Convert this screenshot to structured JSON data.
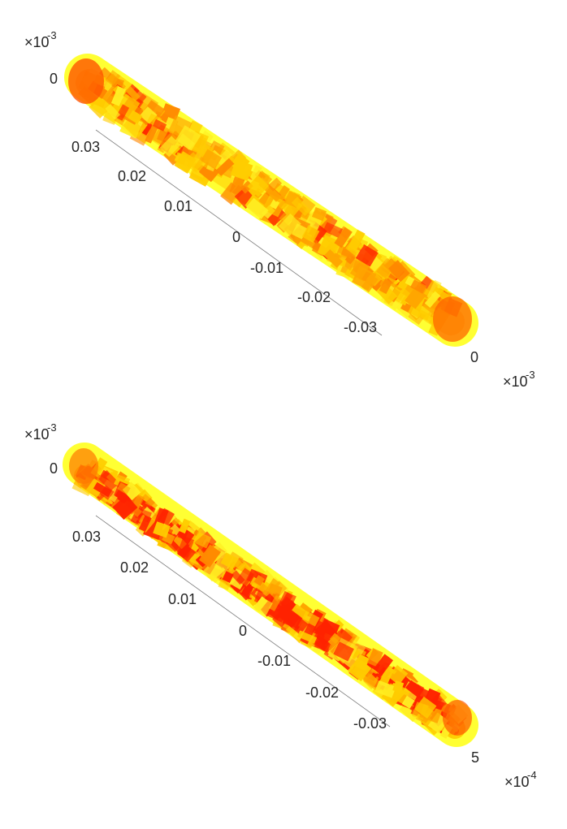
{
  "colors": {
    "yellow": "#ffff33",
    "light_yellow": "#ffee22",
    "gold": "#ffcc00",
    "orange": "#ffa500",
    "dark_orange": "#ff8800",
    "red": "#ff2200",
    "axis": "#262626"
  },
  "chart_data": [
    {
      "type": "surface3d",
      "title": "",
      "colormap": "autumn",
      "y_ticks": [
        "0.03",
        "0.02",
        "0.01",
        "0",
        "-0.01",
        "-0.02",
        "-0.03"
      ],
      "z_tick": "0",
      "z_exponent": "×10",
      "z_exponent_power": "-3",
      "x_tick": "0",
      "x_exponent": "×10",
      "x_exponent_power": "-3",
      "red_density": 0.2
    },
    {
      "type": "surface3d",
      "title": "",
      "colormap": "autumn",
      "y_ticks": [
        "0.03",
        "0.02",
        "0.01",
        "0",
        "-0.01",
        "-0.02",
        "-0.03"
      ],
      "z_tick": "0",
      "z_exponent": "×10",
      "z_exponent_power": "-3",
      "x_tick": "5",
      "x_exponent": "×10",
      "x_exponent_power": "-4",
      "red_density": 0.55
    }
  ]
}
